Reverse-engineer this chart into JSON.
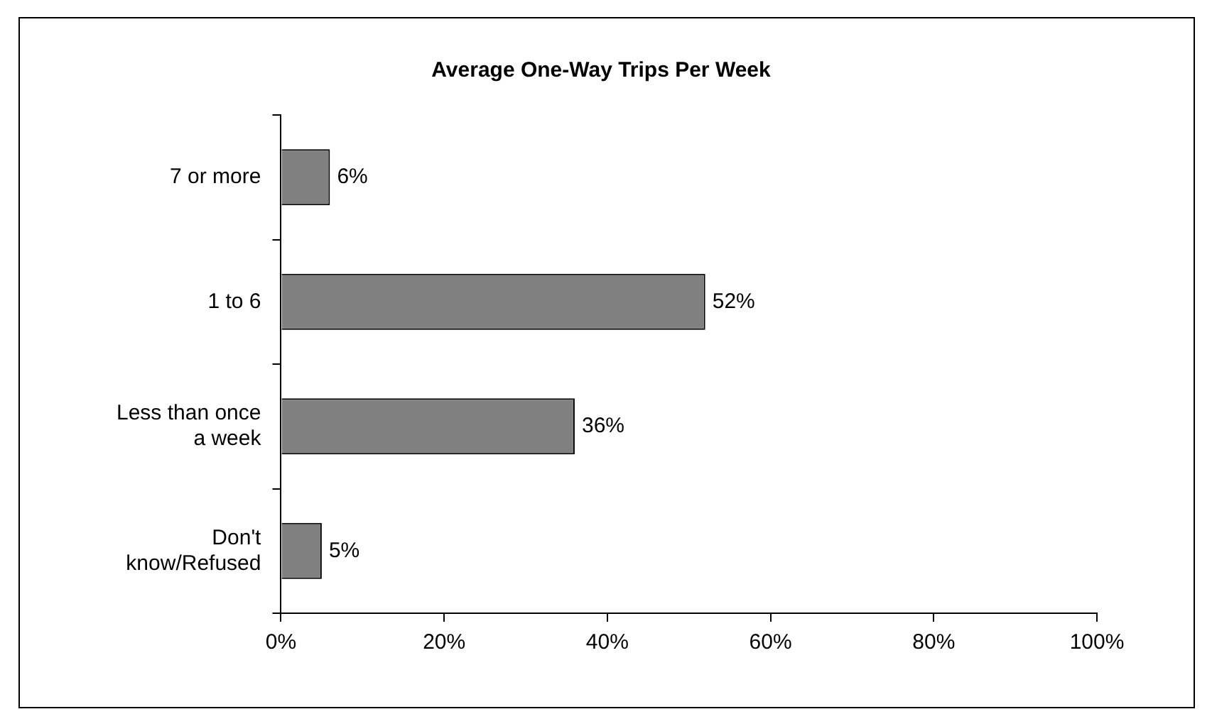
{
  "chart_data": {
    "type": "bar",
    "orientation": "horizontal",
    "title": "Average One-Way Trips Per Week",
    "categories": [
      "7 or more",
      "1 to 6",
      "Less than once a week",
      "Don't know/Refused"
    ],
    "values": [
      6,
      52,
      36,
      5
    ],
    "value_labels": [
      "6%",
      "52%",
      "36%",
      "5%"
    ],
    "color": "#808080",
    "xlim": [
      0,
      100
    ],
    "xticks": [
      {
        "value": 0,
        "label": "0%"
      },
      {
        "value": 20,
        "label": "20%"
      },
      {
        "value": 40,
        "label": "40%"
      },
      {
        "value": 60,
        "label": "60%"
      },
      {
        "value": 80,
        "label": "80%"
      },
      {
        "value": 100,
        "label": "100%"
      }
    ],
    "grid": false,
    "legend": false
  }
}
